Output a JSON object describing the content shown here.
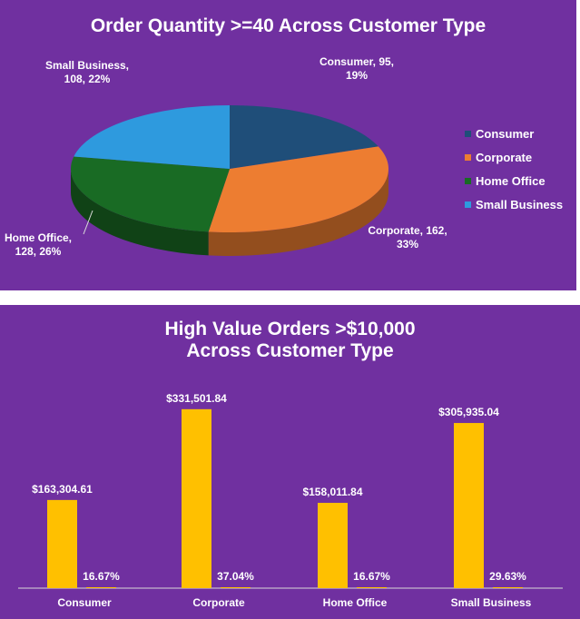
{
  "chart_data": [
    {
      "type": "pie",
      "title": "Order Quantity >=40 Across Customer Type",
      "slices": [
        {
          "name": "Consumer",
          "value": 95,
          "percent": "19%",
          "color": "#1f4e79",
          "label_lines": [
            "Consumer, 95,",
            "19%"
          ]
        },
        {
          "name": "Corporate",
          "value": 162,
          "percent": "33%",
          "color": "#ed7d31",
          "label_lines": [
            "Corporate, 162,",
            "33%"
          ]
        },
        {
          "name": "Home Office",
          "value": 128,
          "percent": "26%",
          "color": "#196b24",
          "label_lines": [
            "Home Office,",
            "128, 26%"
          ]
        },
        {
          "name": "Small Business",
          "value": 108,
          "percent": "22%",
          "color": "#2e9ade",
          "label_lines": [
            "Small Business,",
            "108, 22%"
          ]
        }
      ],
      "legend": {
        "position": "right",
        "items": [
          "Consumer",
          "Corporate",
          "Home Office",
          "Small Business"
        ]
      }
    },
    {
      "type": "bar",
      "title": "High Value Orders >$10,000 Across Customer Type",
      "categories": [
        "Consumer",
        "Corporate",
        "Home Office",
        "Small Business"
      ],
      "series": [
        {
          "values": [
            163304.61,
            331501.84,
            158011.84,
            305935.04
          ],
          "labels": [
            "$163,304.61",
            "$331,501.84",
            "$158,011.84",
            "$305,935.04"
          ],
          "color": "#ffc000"
        },
        {
          "values": [
            0.1667,
            0.3704,
            0.1667,
            0.2963
          ],
          "labels": [
            "16.67%",
            "37.04%",
            "16.67%",
            "29.63%"
          ],
          "color": "#ffc000"
        }
      ],
      "ylim": [
        0,
        380000
      ],
      "grid": false,
      "legend": "none"
    }
  ]
}
